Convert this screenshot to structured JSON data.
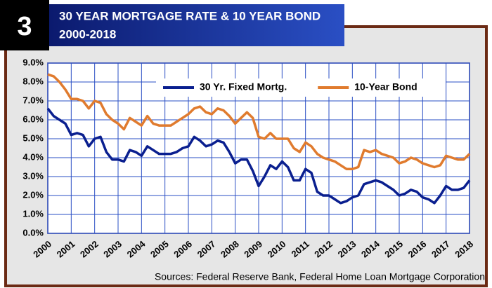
{
  "chart_data": {
    "type": "line",
    "section_number": "3",
    "title": "30 YEAR MORTGAGE RATE & 10 YEAR BOND",
    "subtitle": "2000-2018",
    "source": "Sources:  Federal Reserve Bank, Federal Home Loan Mortgage Corporation",
    "x": [
      2000,
      2000.25,
      2000.5,
      2000.75,
      2001,
      2001.25,
      2001.5,
      2001.75,
      2002,
      2002.25,
      2002.5,
      2002.75,
      2003,
      2003.25,
      2003.5,
      2003.75,
      2004,
      2004.25,
      2004.5,
      2004.75,
      2005,
      2005.25,
      2005.5,
      2005.75,
      2006,
      2006.25,
      2006.5,
      2006.75,
      2007,
      2007.25,
      2007.5,
      2007.75,
      2008,
      2008.25,
      2008.5,
      2008.75,
      2009,
      2009.25,
      2009.5,
      2009.75,
      2010,
      2010.25,
      2010.5,
      2010.75,
      2011,
      2011.25,
      2011.5,
      2011.75,
      2012,
      2012.25,
      2012.5,
      2012.75,
      2013,
      2013.25,
      2013.5,
      2013.75,
      2014,
      2014.25,
      2014.5,
      2014.75,
      2015,
      2015.25,
      2015.5,
      2015.75,
      2016,
      2016.25,
      2016.5,
      2016.75,
      2017,
      2017.25,
      2017.5,
      2017.75,
      2018
    ],
    "series": [
      {
        "name": "30 Yr. Fixed Mortg.",
        "color": "#0a1f8f",
        "values": [
          6.6,
          6.2,
          6.0,
          5.8,
          5.2,
          5.3,
          5.2,
          4.6,
          5.0,
          5.1,
          4.3,
          3.9,
          3.9,
          3.8,
          4.4,
          4.3,
          4.1,
          4.6,
          4.4,
          4.2,
          4.2,
          4.2,
          4.3,
          4.5,
          4.6,
          5.1,
          4.9,
          4.6,
          4.7,
          4.9,
          4.8,
          4.3,
          3.7,
          3.9,
          3.9,
          3.3,
          2.5,
          3.0,
          3.6,
          3.4,
          3.8,
          3.5,
          2.8,
          2.8,
          3.4,
          3.2,
          2.2,
          2.0,
          2.0,
          1.8,
          1.6,
          1.7,
          1.9,
          2.0,
          2.6,
          2.7,
          2.8,
          2.7,
          2.5,
          2.3,
          2.0,
          2.1,
          2.3,
          2.2,
          1.9,
          1.8,
          1.6,
          2.0,
          2.5,
          2.3,
          2.3,
          2.4,
          2.8
        ]
      },
      {
        "name": "10-Year Bond",
        "color": "#e07b2e",
        "values": [
          8.4,
          8.3,
          8.0,
          7.6,
          7.1,
          7.1,
          7.0,
          6.6,
          7.0,
          6.9,
          6.3,
          6.0,
          5.8,
          5.5,
          6.1,
          5.9,
          5.7,
          6.2,
          5.8,
          5.7,
          5.7,
          5.7,
          5.9,
          6.1,
          6.3,
          6.6,
          6.7,
          6.4,
          6.3,
          6.6,
          6.5,
          6.2,
          5.8,
          6.1,
          6.4,
          6.1,
          5.1,
          5.0,
          5.3,
          5.0,
          5.0,
          5.0,
          4.5,
          4.3,
          4.8,
          4.6,
          4.2,
          4.0,
          3.9,
          3.8,
          3.6,
          3.4,
          3.4,
          3.5,
          4.4,
          4.3,
          4.4,
          4.2,
          4.1,
          4.0,
          3.7,
          3.8,
          4.0,
          3.9,
          3.7,
          3.6,
          3.5,
          3.6,
          4.1,
          4.0,
          3.9,
          3.9,
          4.2
        ]
      }
    ],
    "xlim": [
      2000,
      2018
    ],
    "xticks": [
      2000,
      2001,
      2002,
      2003,
      2004,
      2005,
      2006,
      2007,
      2008,
      2009,
      2010,
      2011,
      2012,
      2013,
      2014,
      2015,
      2016,
      2017,
      2018
    ],
    "ylim": [
      0,
      9
    ],
    "yticks": [
      {
        "value": 0,
        "label": "0.0%"
      },
      {
        "value": 1,
        "label": "1.0%"
      },
      {
        "value": 2,
        "label": "2.0%"
      },
      {
        "value": 3,
        "label": "3.0%"
      },
      {
        "value": 4,
        "label": "4.0%"
      },
      {
        "value": 5,
        "label": "5.0%"
      },
      {
        "value": 6,
        "label": "6.0%"
      },
      {
        "value": 7,
        "label": "7.0%"
      },
      {
        "value": 8,
        "label": "8.0%"
      },
      {
        "value": 9,
        "label": "9.0%"
      }
    ],
    "grid": true,
    "legend": "top"
  }
}
